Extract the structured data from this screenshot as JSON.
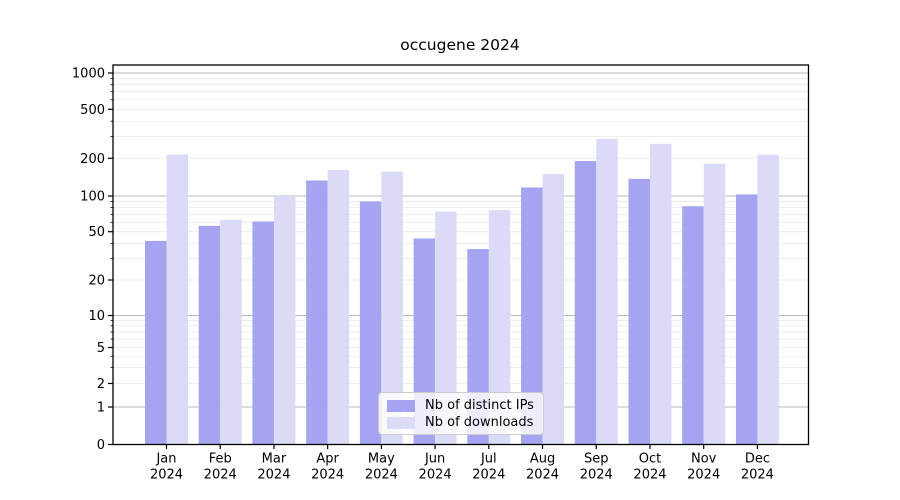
{
  "chart_data": {
    "type": "bar",
    "title": "occugene 2024",
    "scale": "symlog",
    "categories": [
      "Jan",
      "Feb",
      "Mar",
      "Apr",
      "May",
      "Jun",
      "Jul",
      "Aug",
      "Sep",
      "Oct",
      "Nov",
      "Dec"
    ],
    "category_year": "2024",
    "series": [
      {
        "name": "Nb of distinct IPs",
        "color": "#a4a4f0",
        "values": [
          42,
          56,
          61,
          133,
          90,
          44,
          36,
          117,
          190,
          137,
          82,
          103
        ]
      },
      {
        "name": "Nb of downloads",
        "color": "#dbdbf8",
        "values": [
          215,
          63,
          100,
          161,
          157,
          74,
          76,
          150,
          288,
          262,
          181,
          214
        ]
      }
    ],
    "yticks": [
      0,
      1,
      2,
      5,
      10,
      20,
      50,
      100,
      200,
      500,
      1000
    ],
    "ylim": [
      0,
      1000
    ],
    "xlabel": "",
    "ylabel": "",
    "grid": "horizontal",
    "legend_position": "lower center",
    "colors": {
      "major_gridline": "#b8b8b8",
      "minor_gridline": "#e9e9e9",
      "axis": "#000000",
      "background": "#ffffff"
    }
  }
}
